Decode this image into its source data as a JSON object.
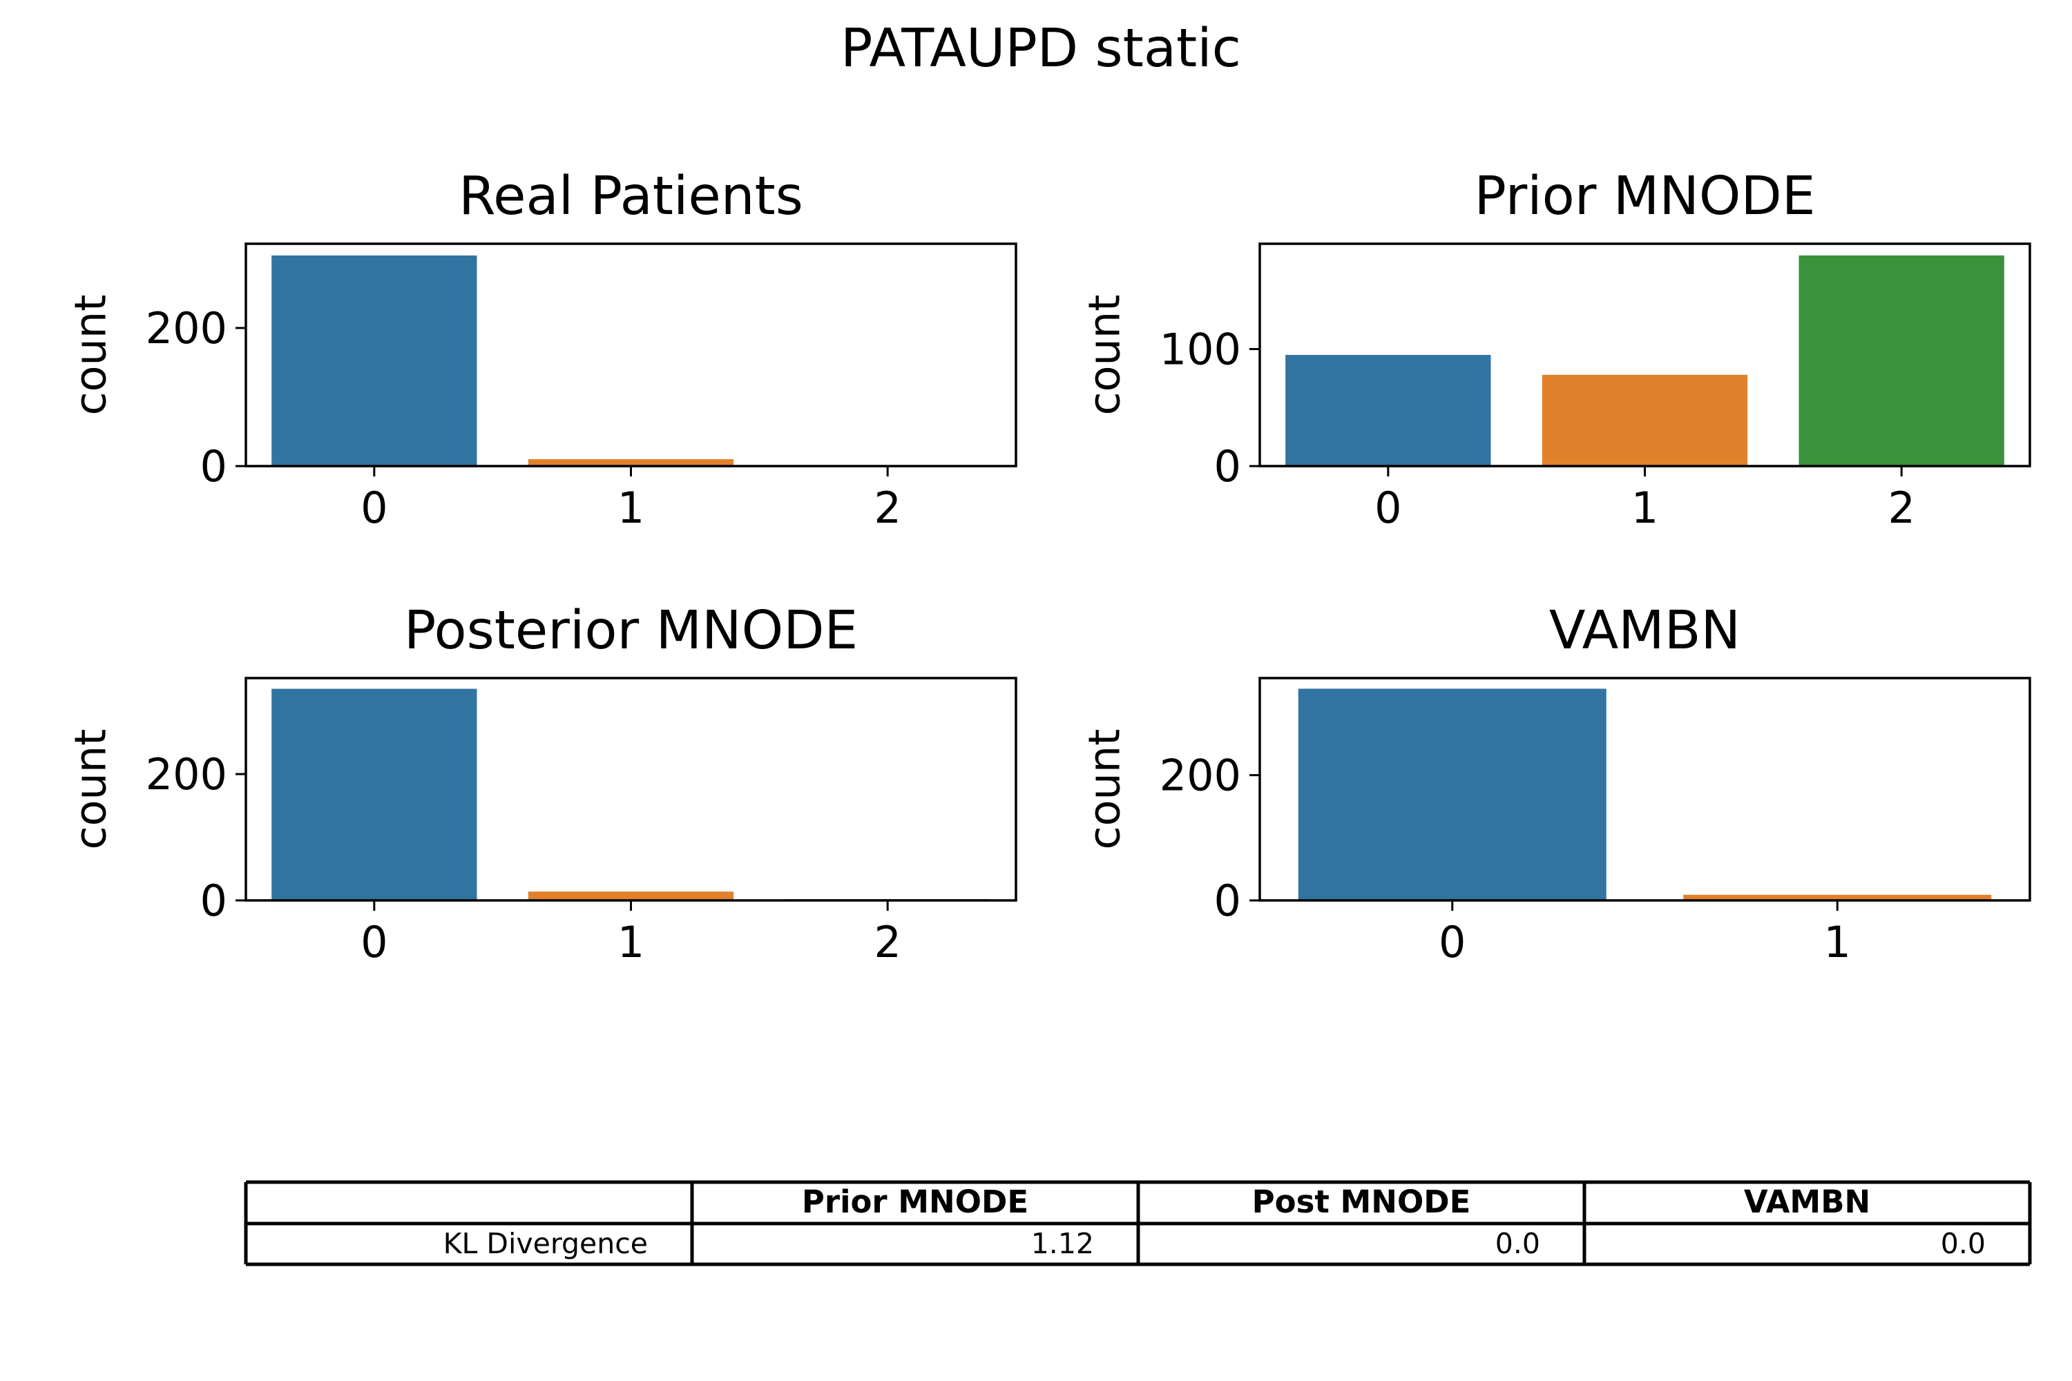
{
  "figure": {
    "title": "PATAUPD static"
  },
  "colors": {
    "category_0": "#3274a1",
    "category_1": "#e1812c",
    "category_2": "#3a923a"
  },
  "chart_data": [
    {
      "type": "bar",
      "title": "Real Patients",
      "xlabel": "",
      "ylabel": "count",
      "categories": [
        "0",
        "1",
        "2"
      ],
      "values": [
        305,
        10,
        0
      ],
      "ylim": [
        0,
        322
      ],
      "yticks": [
        0,
        200
      ]
    },
    {
      "type": "bar",
      "title": "Prior MNODE",
      "xlabel": "",
      "ylabel": "count",
      "categories": [
        "0",
        "1",
        "2"
      ],
      "values": [
        95,
        78,
        180
      ],
      "ylim": [
        0,
        190
      ],
      "yticks": [
        0,
        100
      ]
    },
    {
      "type": "bar",
      "title": "Posterior MNODE",
      "xlabel": "",
      "ylabel": "count",
      "categories": [
        "0",
        "1",
        "2"
      ],
      "values": [
        335,
        14,
        2
      ],
      "ylim": [
        0,
        352
      ],
      "yticks": [
        0,
        200
      ]
    },
    {
      "type": "bar",
      "title": "VAMBN",
      "xlabel": "",
      "ylabel": "count",
      "categories": [
        "0",
        "1"
      ],
      "values": [
        338,
        9
      ],
      "ylim": [
        0,
        355
      ],
      "yticks": [
        0,
        200
      ]
    }
  ],
  "table": {
    "columns": [
      "",
      "Prior MNODE",
      "Post MNODE",
      "VAMBN"
    ],
    "rows": [
      [
        "KL Divergence",
        "1.12",
        "0.0",
        "0.0"
      ]
    ]
  }
}
